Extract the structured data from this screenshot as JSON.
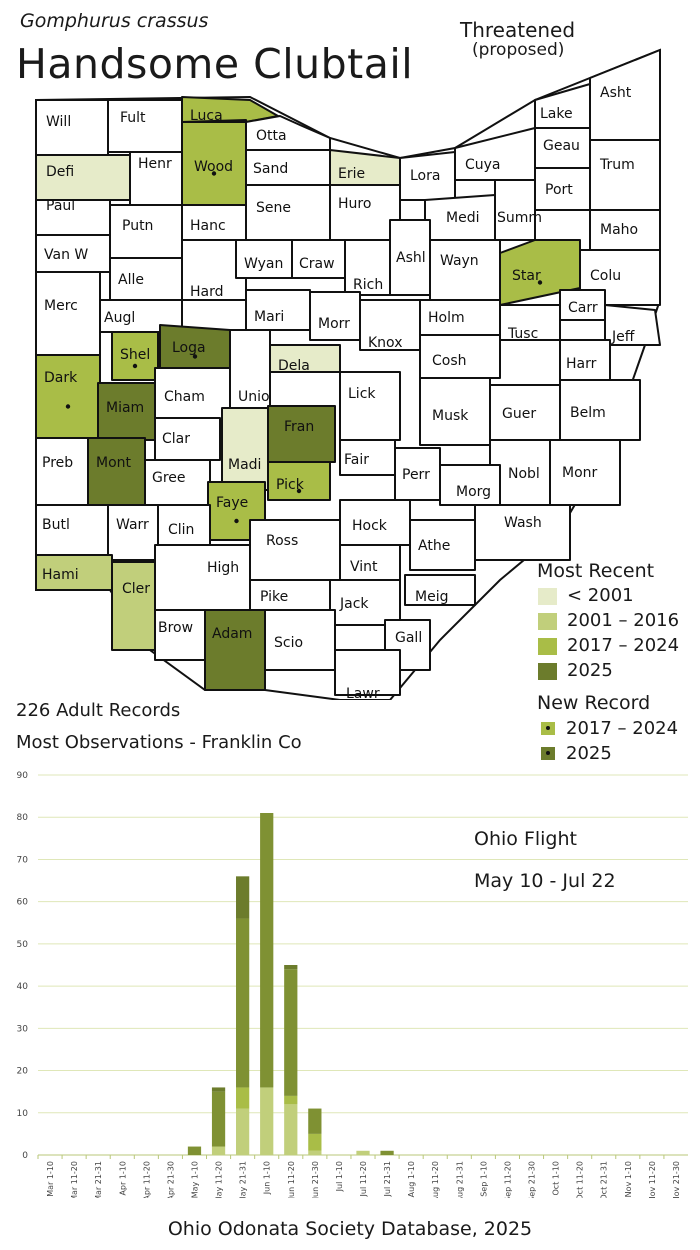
{
  "header": {
    "species": "Gomphurus crassus",
    "common_name": "Handsome Clubtail",
    "status": "Threatened",
    "status_note": "(proposed)"
  },
  "map": {
    "colors": {
      "none": "#ffffff",
      "pre2001": "#e6ebc9",
      "r2001_2016": "#c1cf7b",
      "r2017_2024": "#a9bd47",
      "r2025": "#6c7c2c"
    },
    "counties": [
      {
        "name": "Will",
        "cat": "none",
        "dot": false
      },
      {
        "name": "Fult",
        "cat": "none",
        "dot": false
      },
      {
        "name": "Luca",
        "cat": "r2017_2024",
        "dot": false
      },
      {
        "name": "Otta",
        "cat": "none",
        "dot": false
      },
      {
        "name": "Wood",
        "cat": "r2017_2024",
        "dot": true
      },
      {
        "name": "Defi",
        "cat": "pre2001",
        "dot": false
      },
      {
        "name": "Henr",
        "cat": "none",
        "dot": false
      },
      {
        "name": "Sand",
        "cat": "none",
        "dot": false
      },
      {
        "name": "Erie",
        "cat": "pre2001",
        "dot": false
      },
      {
        "name": "Lora",
        "cat": "none",
        "dot": false
      },
      {
        "name": "Cuya",
        "cat": "none",
        "dot": false
      },
      {
        "name": "Lake",
        "cat": "none",
        "dot": false
      },
      {
        "name": "Asht",
        "cat": "none",
        "dot": false
      },
      {
        "name": "Geau",
        "cat": "none",
        "dot": false
      },
      {
        "name": "Trum",
        "cat": "none",
        "dot": false
      },
      {
        "name": "Paul",
        "cat": "none",
        "dot": false
      },
      {
        "name": "Putn",
        "cat": "none",
        "dot": false
      },
      {
        "name": "Hanc",
        "cat": "none",
        "dot": false
      },
      {
        "name": "Sene",
        "cat": "none",
        "dot": false
      },
      {
        "name": "Huro",
        "cat": "none",
        "dot": false
      },
      {
        "name": "Medi",
        "cat": "none",
        "dot": false
      },
      {
        "name": "Summ",
        "cat": "none",
        "dot": false
      },
      {
        "name": "Port",
        "cat": "none",
        "dot": false
      },
      {
        "name": "Maho",
        "cat": "none",
        "dot": false
      },
      {
        "name": "Van W",
        "cat": "none",
        "dot": false
      },
      {
        "name": "Alle",
        "cat": "none",
        "dot": false
      },
      {
        "name": "Hard",
        "cat": "none",
        "dot": false
      },
      {
        "name": "Wyan",
        "cat": "none",
        "dot": false
      },
      {
        "name": "Craw",
        "cat": "none",
        "dot": false
      },
      {
        "name": "Rich",
        "cat": "none",
        "dot": false
      },
      {
        "name": "Ashl",
        "cat": "none",
        "dot": false
      },
      {
        "name": "Wayn",
        "cat": "none",
        "dot": false
      },
      {
        "name": "Star",
        "cat": "r2017_2024",
        "dot": true
      },
      {
        "name": "Colu",
        "cat": "none",
        "dot": false
      },
      {
        "name": "Merc",
        "cat": "none",
        "dot": false
      },
      {
        "name": "Augl",
        "cat": "none",
        "dot": false
      },
      {
        "name": "Mari",
        "cat": "none",
        "dot": false
      },
      {
        "name": "Morr",
        "cat": "none",
        "dot": false
      },
      {
        "name": "Knox",
        "cat": "none",
        "dot": false
      },
      {
        "name": "Holm",
        "cat": "none",
        "dot": false
      },
      {
        "name": "Tusc",
        "cat": "none",
        "dot": false
      },
      {
        "name": "Carr",
        "cat": "none",
        "dot": false
      },
      {
        "name": "Jeff",
        "cat": "none",
        "dot": false
      },
      {
        "name": "Shel",
        "cat": "r2017_2024",
        "dot": true
      },
      {
        "name": "Loga",
        "cat": "r2025",
        "dot": true
      },
      {
        "name": "Dela",
        "cat": "pre2001",
        "dot": false
      },
      {
        "name": "Cosh",
        "cat": "none",
        "dot": false
      },
      {
        "name": "Harr",
        "cat": "none",
        "dot": false
      },
      {
        "name": "Dark",
        "cat": "r2017_2024",
        "dot": true
      },
      {
        "name": "Cham",
        "cat": "none",
        "dot": false
      },
      {
        "name": "Unio",
        "cat": "none",
        "dot": false
      },
      {
        "name": "Lick",
        "cat": "none",
        "dot": false
      },
      {
        "name": "Miam",
        "cat": "r2025",
        "dot": false
      },
      {
        "name": "Fran",
        "cat": "r2025",
        "dot": false
      },
      {
        "name": "Musk",
        "cat": "none",
        "dot": false
      },
      {
        "name": "Guer",
        "cat": "none",
        "dot": false
      },
      {
        "name": "Belm",
        "cat": "none",
        "dot": false
      },
      {
        "name": "Clar",
        "cat": "none",
        "dot": false
      },
      {
        "name": "Madi",
        "cat": "pre2001",
        "dot": false
      },
      {
        "name": "Fair",
        "cat": "none",
        "dot": false
      },
      {
        "name": "Perr",
        "cat": "none",
        "dot": false
      },
      {
        "name": "Preb",
        "cat": "none",
        "dot": false
      },
      {
        "name": "Mont",
        "cat": "r2025",
        "dot": false
      },
      {
        "name": "Gree",
        "cat": "none",
        "dot": false
      },
      {
        "name": "Pick",
        "cat": "r2017_2024",
        "dot": true
      },
      {
        "name": "Nobl",
        "cat": "none",
        "dot": false
      },
      {
        "name": "Monr",
        "cat": "none",
        "dot": false
      },
      {
        "name": "Morg",
        "cat": "none",
        "dot": false
      },
      {
        "name": "Faye",
        "cat": "r2017_2024",
        "dot": true
      },
      {
        "name": "Butl",
        "cat": "none",
        "dot": false
      },
      {
        "name": "Warr",
        "cat": "none",
        "dot": false
      },
      {
        "name": "Clin",
        "cat": "none",
        "dot": false
      },
      {
        "name": "Ross",
        "cat": "none",
        "dot": false
      },
      {
        "name": "Hock",
        "cat": "none",
        "dot": false
      },
      {
        "name": "Wash",
        "cat": "none",
        "dot": false
      },
      {
        "name": "Athe",
        "cat": "none",
        "dot": false
      },
      {
        "name": "Hami",
        "cat": "r2001_2016",
        "dot": false
      },
      {
        "name": "Cler",
        "cat": "r2001_2016",
        "dot": false
      },
      {
        "name": "High",
        "cat": "none",
        "dot": false
      },
      {
        "name": "Vint",
        "cat": "none",
        "dot": false
      },
      {
        "name": "Meig",
        "cat": "none",
        "dot": false
      },
      {
        "name": "Pike",
        "cat": "none",
        "dot": false
      },
      {
        "name": "Jack",
        "cat": "none",
        "dot": false
      },
      {
        "name": "Brow",
        "cat": "none",
        "dot": false
      },
      {
        "name": "Adam",
        "cat": "r2025",
        "dot": false
      },
      {
        "name": "Scio",
        "cat": "none",
        "dot": false
      },
      {
        "name": "Gall",
        "cat": "none",
        "dot": false
      },
      {
        "name": "Lawr",
        "cat": "none",
        "dot": false
      }
    ]
  },
  "legend": {
    "recent_title": "Most Recent",
    "recent_items": [
      {
        "label": "< 2001",
        "cat": "pre2001"
      },
      {
        "label": "2001 – 2016",
        "cat": "r2001_2016"
      },
      {
        "label": "2017 – 2024",
        "cat": "r2017_2024"
      },
      {
        "label": "2025",
        "cat": "r2025"
      }
    ],
    "new_title": "New Record",
    "new_items": [
      {
        "label": "2017 – 2024",
        "cat": "r2017_2024"
      },
      {
        "label": "2025",
        "cat": "r2025"
      }
    ]
  },
  "summary": {
    "records": "226 Adult Records",
    "most_obs": "Most Observations - Franklin Co"
  },
  "flight": {
    "title": "Ohio Flight",
    "range": "May 10 - Jul 22"
  },
  "source": "Ohio Odonata Society Database, 2025",
  "chart_data": {
    "type": "bar",
    "stacked": true,
    "categories": [
      "Mar 1-10",
      "Mar 11-20",
      "Mar 21-31",
      "Apr 1-10",
      "Apr 11-20",
      "Apr 21-30",
      "May 1-10",
      "May 11-20",
      "May 21-31",
      "Jun 1-10",
      "Jun 11-20",
      "Jun 21-30",
      "Jul 1-10",
      "Jul 11-20",
      "Jul 21-31",
      "Aug 1-10",
      "Aug 11-20",
      "Aug 21-31",
      "Sep 1-10",
      "Sep 11-20",
      "Sep 21-30",
      "Oct 1-10",
      "Oct 11-20",
      "Oct 21-31",
      "Nov 1-10",
      "Nov 11-20",
      "Nov 21-30"
    ],
    "series": [
      {
        "color": "#c1cf7b",
        "values": [
          0,
          0,
          0,
          0,
          0,
          0,
          0,
          2,
          11,
          16,
          12,
          1,
          0,
          1,
          0,
          0,
          0,
          0,
          0,
          0,
          0,
          0,
          0,
          0,
          0,
          0,
          0
        ]
      },
      {
        "color": "#a9bd47",
        "values": [
          0,
          0,
          0,
          0,
          0,
          0,
          0,
          0,
          5,
          0,
          2,
          4,
          0,
          0,
          0,
          0,
          0,
          0,
          0,
          0,
          0,
          0,
          0,
          0,
          0,
          0,
          0
        ]
      },
      {
        "color": "#7f9133",
        "values": [
          0,
          0,
          0,
          0,
          0,
          0,
          2,
          13,
          40,
          65,
          30,
          6,
          0,
          0,
          1,
          0,
          0,
          0,
          0,
          0,
          0,
          0,
          0,
          0,
          0,
          0,
          0
        ]
      },
      {
        "color": "#6c7c2c",
        "values": [
          0,
          0,
          0,
          0,
          0,
          0,
          0,
          1,
          10,
          0,
          1,
          0,
          0,
          0,
          0,
          0,
          0,
          0,
          0,
          0,
          0,
          0,
          0,
          0,
          0,
          0,
          0
        ]
      }
    ],
    "yticks": [
      0,
      10,
      20,
      30,
      40,
      50,
      60,
      70,
      80,
      90
    ],
    "ylim": [
      0,
      90
    ],
    "grid": true
  }
}
